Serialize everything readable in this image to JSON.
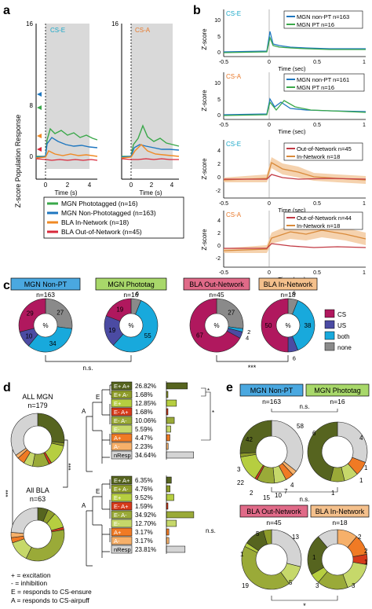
{
  "colors": {
    "mgn_pt": "#3aa84a",
    "mgn_npt": "#1f77c0",
    "bla_in": "#f08a24",
    "bla_out": "#d8283a",
    "cs_e": "#1aa8c8",
    "cs_a": "#e9792a",
    "pie_cs": "#b0185e",
    "pie_us": "#4b4ba3",
    "pie_both": "#18a9dc",
    "pie_none": "#8a8a8a",
    "shade": "#d9d9d9"
  },
  "panel_a": {
    "letter": "a",
    "ylabel": "Z-score Population Response",
    "xlabel": "Time (s)",
    "y_ticks": [
      "16",
      "8",
      "0"
    ],
    "x_ticks": [
      "0",
      "2",
      "4"
    ],
    "cs_e_label": "CS-E",
    "cs_a_label": "CS-A",
    "legend": [
      "MGN Phototagged (n=16)",
      "MGN Non-Phototagged (n=163)",
      "BLA In-Network (n=18)",
      "BLA Out-of-Network (n=45)"
    ]
  },
  "panel_b": {
    "letter": "b",
    "ylabel": "Z-score",
    "xlabel": "Time (sec)",
    "x_ticks": [
      "-0.5",
      "0",
      "0.5",
      "1"
    ],
    "subplots": [
      {
        "tag": "CS-E",
        "y_ticks": [
          "10",
          "5",
          "0"
        ],
        "legend": [
          "MGN non-PT n=163",
          "MGN PT n=16"
        ]
      },
      {
        "tag": "CS-A",
        "y_ticks": [
          "10",
          "5",
          "0"
        ],
        "legend": [
          "MGN non-PT n=161",
          "MGN PT n=16"
        ]
      },
      {
        "tag": "CS-E",
        "y_ticks": [
          "4",
          "2",
          "0",
          "-2"
        ],
        "legend": [
          "Out-of-Network n=45",
          "In-Network n=18"
        ]
      },
      {
        "tag": "CS-A",
        "y_ticks": [
          "4",
          "2",
          "0",
          "-2"
        ],
        "legend": [
          "Out-of-Network n=44",
          "In-Network n=18"
        ]
      }
    ]
  },
  "panel_c": {
    "letter": "c",
    "groups": [
      {
        "title": "MGN Non-PT",
        "n": "n=163",
        "cs": 29,
        "us": 10,
        "both": 34,
        "none": 27
      },
      {
        "title": "MGN Phototag",
        "n": "n=16",
        "cs": 19,
        "us": 19,
        "both": 55,
        "none": 6
      },
      {
        "title": "BLA Out-Network",
        "n": "n=45",
        "cs": 67,
        "us": 4,
        "both": 2,
        "none": 27
      },
      {
        "title": "BLA In-Network",
        "n": "n=18",
        "cs": 50,
        "us": 6,
        "both": 38,
        "none": 6
      }
    ],
    "center_label": "%",
    "legend": [
      "CS",
      "US",
      "both",
      "none"
    ],
    "sig_left": "n.s.",
    "sig_right": "***"
  },
  "panel_d": {
    "letter": "d",
    "all_mgn": {
      "title": "ALL MGN",
      "n": "n=179"
    },
    "all_bla": {
      "title": "All BLA",
      "n": "n=63"
    },
    "sig_left": "***",
    "sig_right": "***",
    "mgn_rows": [
      {
        "code": "E+ A+",
        "pct": "26.82%",
        "value": 26.82
      },
      {
        "code": "E+ A-",
        "pct": "1.68%",
        "value": 1.68
      },
      {
        "code": "E+",
        "pct": "12.85%",
        "value": 12.85
      },
      {
        "code": "E- A+",
        "pct": "1.68%",
        "value": 1.68
      },
      {
        "code": "E- A-",
        "pct": "10.06%",
        "value": 10.06
      },
      {
        "code": "E-",
        "pct": "5.59%",
        "value": 5.59
      },
      {
        "code": "A+",
        "pct": "4.47%",
        "value": 4.47
      },
      {
        "code": "A-",
        "pct": "2.23%",
        "value": 2.23
      },
      {
        "code": "nResp",
        "pct": "34.64%",
        "value": 34.64
      }
    ],
    "bla_rows": [
      {
        "code": "E+ A+",
        "pct": "6.35%",
        "value": 6.35
      },
      {
        "code": "E+ A-",
        "pct": "4.76%",
        "value": 4.76
      },
      {
        "code": "E+",
        "pct": "9.52%",
        "value": 9.52
      },
      {
        "code": "E- A+",
        "pct": "1.59%",
        "value": 1.59
      },
      {
        "code": "E- A-",
        "pct": "34.92%",
        "value": 34.92
      },
      {
        "code": "E-",
        "pct": "12.70%",
        "value": 12.7
      },
      {
        "code": "A+",
        "pct": "3.17%",
        "value": 3.17
      },
      {
        "code": "A-",
        "pct": "3.17%",
        "value": 3.17
      },
      {
        "code": "nResp",
        "pct": "23.81%",
        "value": 23.81
      }
    ],
    "bla_sig": "n.s.",
    "key": [
      "+ = excitation",
      "- = inhibition",
      "E = responds to CS-ensure",
      "A = responds to CS-airpuff"
    ]
  },
  "panel_e": {
    "letter": "e",
    "groups": [
      {
        "title": "MGN Non-PT",
        "n": "n=163"
      },
      {
        "title": "MGN Phototag",
        "n": "n=16"
      },
      {
        "title": "BLA Out-Network",
        "n": "n=45"
      },
      {
        "title": "BLA In-Network",
        "n": "n=18"
      }
    ],
    "mgn_npt_labels": [
      "42",
      "58",
      "3",
      "22",
      "2",
      "15",
      "10",
      "7",
      "4"
    ],
    "mgn_pt_labels": [
      "4",
      "6",
      "1",
      "1",
      "1"
    ],
    "bla_out_labels": [
      "5",
      "13",
      "1",
      "19",
      "5"
    ],
    "bla_in_labels": [
      "2",
      "2",
      "1",
      "1",
      "3",
      "3"
    ],
    "sig_top": "n.s.",
    "sig_mid": "n.s.",
    "sig_bottom": "*"
  }
}
